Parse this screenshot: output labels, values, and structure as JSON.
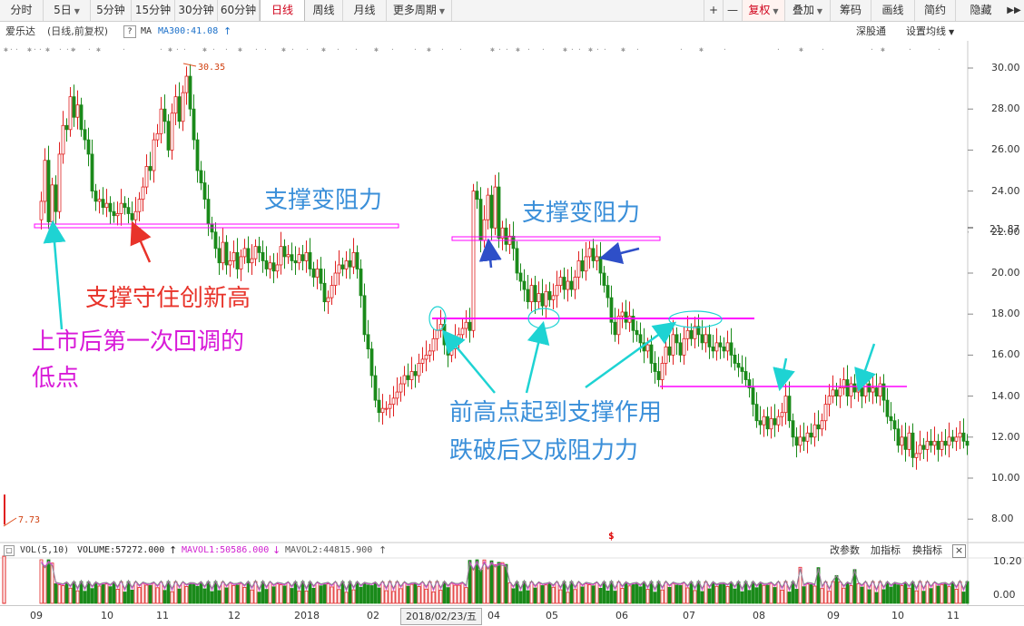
{
  "toolbar": {
    "periods": [
      "分时",
      "5日",
      "5分钟",
      "15分钟",
      "30分钟",
      "60分钟",
      "日线",
      "周线",
      "月线",
      "更多周期"
    ],
    "active_period": "日线",
    "right_items": [
      "+",
      "—",
      "复权",
      "叠加",
      "筹码",
      "画线",
      "简约",
      "隐藏"
    ],
    "expand_icon": "double-chevron-right-icon"
  },
  "info": {
    "stock_name": "爱乐达",
    "chart_mode": "(日线,前复权)",
    "help": "?",
    "ma_label": "MA",
    "ma300": "MA300:41.08",
    "ma300_arrow": "↑",
    "exchange_link": "深股通",
    "ma_settings": "设置均线"
  },
  "price_axis": {
    "ticks": [
      "30.00",
      "28.00",
      "26.00",
      "24.00",
      "22.00",
      "20.00",
      "18.00",
      "16.00",
      "14.00",
      "12.00",
      "10.00",
      "8.00"
    ],
    "current_price": "21.87",
    "high_label": "30.35",
    "low_label": "7.73",
    "marker": "$"
  },
  "volume": {
    "title": "VOL(5,10)",
    "volume_value": "VOLUME:57272.000",
    "volume_arrow": "↑",
    "mavol1": "MAVOL1:50586.000",
    "mavol1_arrow": "↓",
    "mavol2": "MAVOL2:44815.900",
    "mavol2_arrow": "↑",
    "actions": [
      "改参数",
      "加指标",
      "换指标"
    ],
    "close": "×",
    "ticks": [
      "10.20",
      "0.00"
    ]
  },
  "x_axis": {
    "labels": [
      "09",
      "10",
      "11",
      "12",
      "2018",
      "02",
      "04",
      "05",
      "06",
      "07",
      "08",
      "09",
      "10",
      "11"
    ],
    "cursor_date": "2018/02/23/五"
  },
  "annotations": {
    "support_to_resistance_1": "支撑变阻力",
    "support_to_resistance_2": "支撑变阻力",
    "support_held": "支撑守住创新高",
    "first_pullback_line1": "上市后第一次回调的",
    "first_pullback_line2": "低点",
    "prior_high_line1": "前高点起到支撑作用",
    "prior_high_line2": "跌破后又成阻力力",
    "colors": {
      "magenta": "#ff00ff",
      "red": "#e8332a",
      "cyan": "#1ed3d3",
      "blue": "#3a8fd9",
      "navy": "#2e4fc8",
      "up": "#e02020",
      "down": "#1a8a1a"
    }
  }
}
